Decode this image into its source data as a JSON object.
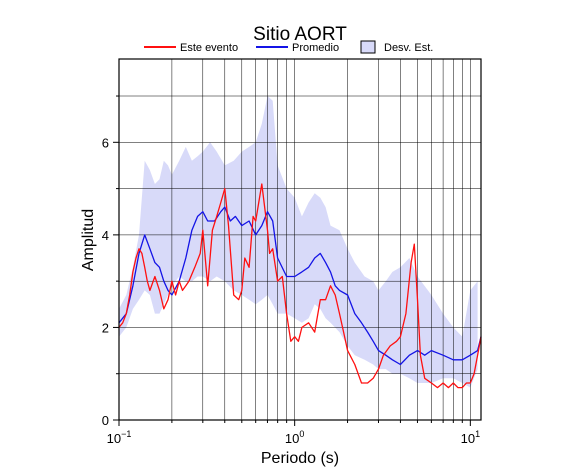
{
  "chart_data": {
    "type": "line",
    "title": "Sitio AORT",
    "xlabel": "Periodo (s)",
    "ylabel": "Amplitud",
    "x_scale": "log",
    "xlim": [
      0.1,
      11.5
    ],
    "ylim": [
      0,
      7.8
    ],
    "grid": true,
    "legend_placement": "top",
    "x_tick_labels": [
      {
        "x": 0.1,
        "base": "10",
        "exp": "−1"
      },
      {
        "x": 1,
        "base": "10",
        "exp": "0"
      },
      {
        "x": 10,
        "base": "10",
        "exp": "1"
      }
    ],
    "y_ticks": [
      0,
      2,
      4,
      6
    ],
    "band": {
      "name": "Desv. Est.",
      "color": "#d8daf9",
      "x": [
        0.1,
        0.11,
        0.12,
        0.13,
        0.14,
        0.15,
        0.16,
        0.17,
        0.18,
        0.19,
        0.2,
        0.22,
        0.24,
        0.26,
        0.28,
        0.3,
        0.33,
        0.36,
        0.4,
        0.45,
        0.5,
        0.55,
        0.6,
        0.65,
        0.7,
        0.75,
        0.8,
        0.9,
        1.0,
        1.1,
        1.2,
        1.3,
        1.4,
        1.5,
        1.6,
        1.8,
        2.0,
        2.2,
        2.5,
        2.8,
        3.0,
        3.3,
        3.6,
        4.0,
        4.5,
        5.0,
        6.0,
        7.0,
        8.0,
        9.0,
        10.0,
        11.0
      ],
      "upper": [
        2.4,
        2.7,
        3.3,
        4.0,
        5.6,
        5.4,
        5.1,
        5.2,
        5.6,
        5.5,
        5.3,
        5.6,
        5.9,
        5.6,
        5.7,
        5.8,
        6.0,
        5.8,
        5.5,
        5.6,
        5.8,
        5.9,
        6.0,
        6.4,
        7.0,
        6.9,
        5.5,
        5.0,
        4.8,
        4.4,
        4.7,
        4.9,
        4.8,
        4.6,
        4.2,
        4.1,
        3.7,
        3.4,
        3.1,
        3.0,
        2.8,
        3.0,
        3.2,
        3.3,
        3.5,
        3.1,
        2.7,
        2.3,
        2.0,
        1.8,
        2.8,
        3.0
      ],
      "lower": [
        1.8,
        2.0,
        2.4,
        2.6,
        2.8,
        2.7,
        2.3,
        2.3,
        2.5,
        2.7,
        2.9,
        3.1,
        3.0,
        3.0,
        3.1,
        3.1,
        3.0,
        3.1,
        3.0,
        2.8,
        2.7,
        2.6,
        2.5,
        2.6,
        2.7,
        2.5,
        2.3,
        2.3,
        2.2,
        2.1,
        2.2,
        2.5,
        2.4,
        2.2,
        2.1,
        1.9,
        1.6,
        1.4,
        1.3,
        1.2,
        1.1,
        1.1,
        1.0,
        1.0,
        0.9,
        0.8,
        0.8,
        0.9,
        0.9,
        0.8,
        0.7,
        1.1
      ]
    },
    "series": [
      {
        "name": "Este evento",
        "color": "#ff1010",
        "x": [
          0.1,
          0.105,
          0.11,
          0.115,
          0.12,
          0.125,
          0.13,
          0.135,
          0.14,
          0.145,
          0.15,
          0.16,
          0.17,
          0.18,
          0.19,
          0.2,
          0.21,
          0.22,
          0.23,
          0.24,
          0.25,
          0.27,
          0.29,
          0.3,
          0.32,
          0.34,
          0.36,
          0.38,
          0.4,
          0.42,
          0.45,
          0.48,
          0.5,
          0.52,
          0.55,
          0.58,
          0.6,
          0.65,
          0.7,
          0.72,
          0.75,
          0.8,
          0.85,
          0.9,
          0.95,
          1.0,
          1.05,
          1.1,
          1.2,
          1.3,
          1.4,
          1.5,
          1.6,
          1.7,
          1.8,
          1.9,
          2.0,
          2.2,
          2.4,
          2.6,
          2.8,
          3.0,
          3.2,
          3.5,
          3.8,
          4.0,
          4.3,
          4.6,
          4.8,
          5.0,
          5.2,
          5.5,
          6.0,
          6.5,
          7.0,
          7.5,
          8.0,
          8.5,
          9.0,
          9.5,
          10.0,
          10.5,
          11.0,
          11.5
        ],
        "y": [
          2.0,
          2.1,
          2.3,
          2.7,
          3.2,
          3.5,
          3.7,
          3.6,
          3.3,
          3.0,
          2.8,
          3.1,
          2.8,
          2.4,
          2.6,
          3.0,
          2.7,
          3.0,
          2.8,
          2.9,
          3.0,
          3.3,
          3.6,
          4.1,
          2.9,
          4.1,
          4.4,
          4.7,
          5.0,
          4.2,
          2.7,
          2.6,
          2.8,
          3.5,
          3.3,
          4.4,
          4.3,
          5.1,
          4.1,
          3.6,
          3.7,
          3.0,
          3.1,
          2.3,
          1.7,
          1.8,
          1.7,
          2.0,
          2.1,
          1.9,
          2.6,
          2.6,
          2.9,
          2.7,
          2.3,
          1.9,
          1.5,
          1.2,
          0.8,
          0.8,
          0.9,
          1.1,
          1.4,
          1.6,
          1.7,
          1.8,
          2.3,
          3.4,
          3.8,
          2.6,
          1.4,
          0.9,
          0.8,
          0.7,
          0.8,
          0.7,
          0.8,
          0.7,
          0.7,
          0.8,
          0.8,
          1.0,
          1.4,
          1.8
        ]
      },
      {
        "name": "Promedio",
        "color": "#1414e6",
        "x": [
          0.1,
          0.11,
          0.12,
          0.13,
          0.14,
          0.15,
          0.16,
          0.17,
          0.18,
          0.19,
          0.2,
          0.22,
          0.24,
          0.26,
          0.28,
          0.3,
          0.32,
          0.35,
          0.38,
          0.4,
          0.43,
          0.46,
          0.5,
          0.55,
          0.6,
          0.65,
          0.7,
          0.75,
          0.8,
          0.9,
          1.0,
          1.1,
          1.2,
          1.3,
          1.4,
          1.5,
          1.6,
          1.7,
          1.8,
          2.0,
          2.2,
          2.4,
          2.6,
          2.8,
          3.0,
          3.3,
          3.6,
          4.0,
          4.5,
          5.0,
          5.5,
          6.0,
          7.0,
          8.0,
          9.0,
          10.0,
          11.0,
          11.5
        ],
        "y": [
          2.1,
          2.3,
          2.9,
          3.6,
          4.0,
          3.7,
          3.4,
          3.3,
          3.0,
          2.8,
          2.7,
          3.0,
          3.5,
          4.1,
          4.4,
          4.5,
          4.3,
          4.3,
          4.5,
          4.6,
          4.3,
          4.4,
          4.2,
          4.3,
          4.0,
          4.2,
          4.5,
          4.3,
          3.5,
          3.1,
          3.1,
          3.2,
          3.3,
          3.5,
          3.6,
          3.4,
          3.2,
          2.9,
          2.8,
          2.7,
          2.3,
          2.1,
          1.9,
          1.7,
          1.5,
          1.4,
          1.3,
          1.2,
          1.4,
          1.5,
          1.4,
          1.5,
          1.4,
          1.3,
          1.3,
          1.4,
          1.5,
          1.8
        ]
      }
    ]
  }
}
